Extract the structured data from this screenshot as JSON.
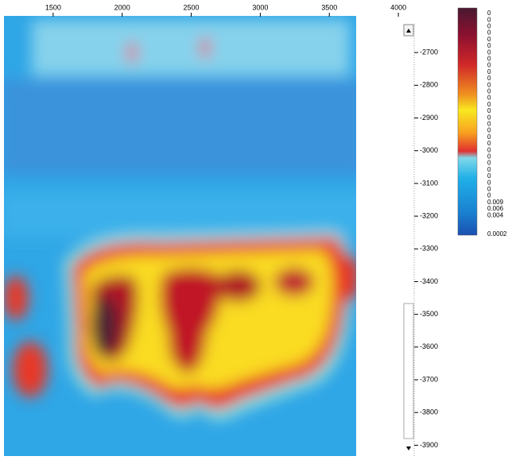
{
  "chart_data": {
    "type": "heatmap",
    "xlim": [
      1144,
      4080
    ],
    "xticks": [
      1500,
      2000,
      2500,
      3000,
      3500,
      4000
    ],
    "ylim": [
      -2588,
      -3933
    ],
    "yticks": [
      -2700,
      -2800,
      -2900,
      -3000,
      -3100,
      -3200,
      -3300,
      -3400,
      -3500,
      -3600,
      -3700,
      -3800,
      -3900
    ],
    "colorbar_labels": [
      "0",
      "0",
      "0",
      "0",
      "0",
      "0",
      "0",
      "0",
      "0",
      "0",
      "0",
      "0",
      "0",
      "0",
      "0",
      "0",
      "0",
      "0",
      "0",
      "0",
      "0",
      "0",
      "0",
      "0",
      "0",
      "0",
      "0",
      "0",
      "0",
      "0.009",
      "0.006",
      "0.004",
      "0.0002"
    ]
  }
}
